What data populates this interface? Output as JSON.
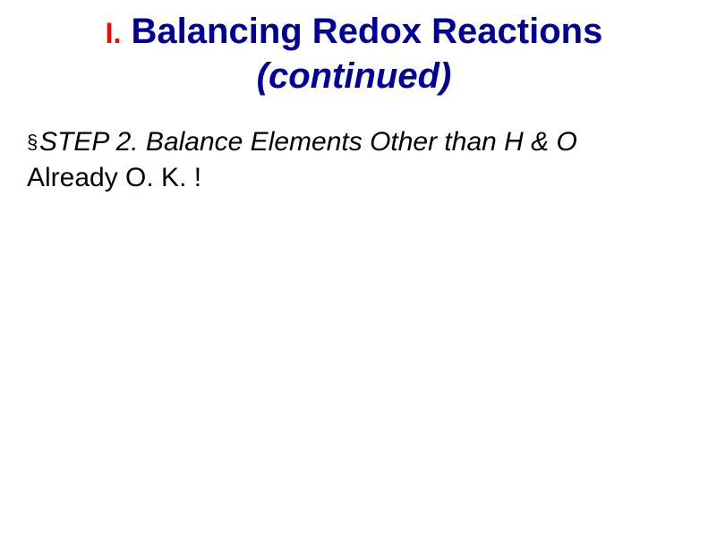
{
  "title": {
    "roman": "I.",
    "main": " Balancing Redox Reactions",
    "continued": "(continued)"
  },
  "body": {
    "bullet_glyph": "§",
    "step_text": "STEP 2.  Balance Elements Other than H & O",
    "already_text": "Already O. K. !"
  },
  "colors": {
    "roman": "#ff0000",
    "title": "#000099",
    "body": "#000000",
    "background": "#ffffff"
  },
  "fonts": {
    "title_size": 40,
    "roman_size": 32,
    "body_size": 30
  }
}
